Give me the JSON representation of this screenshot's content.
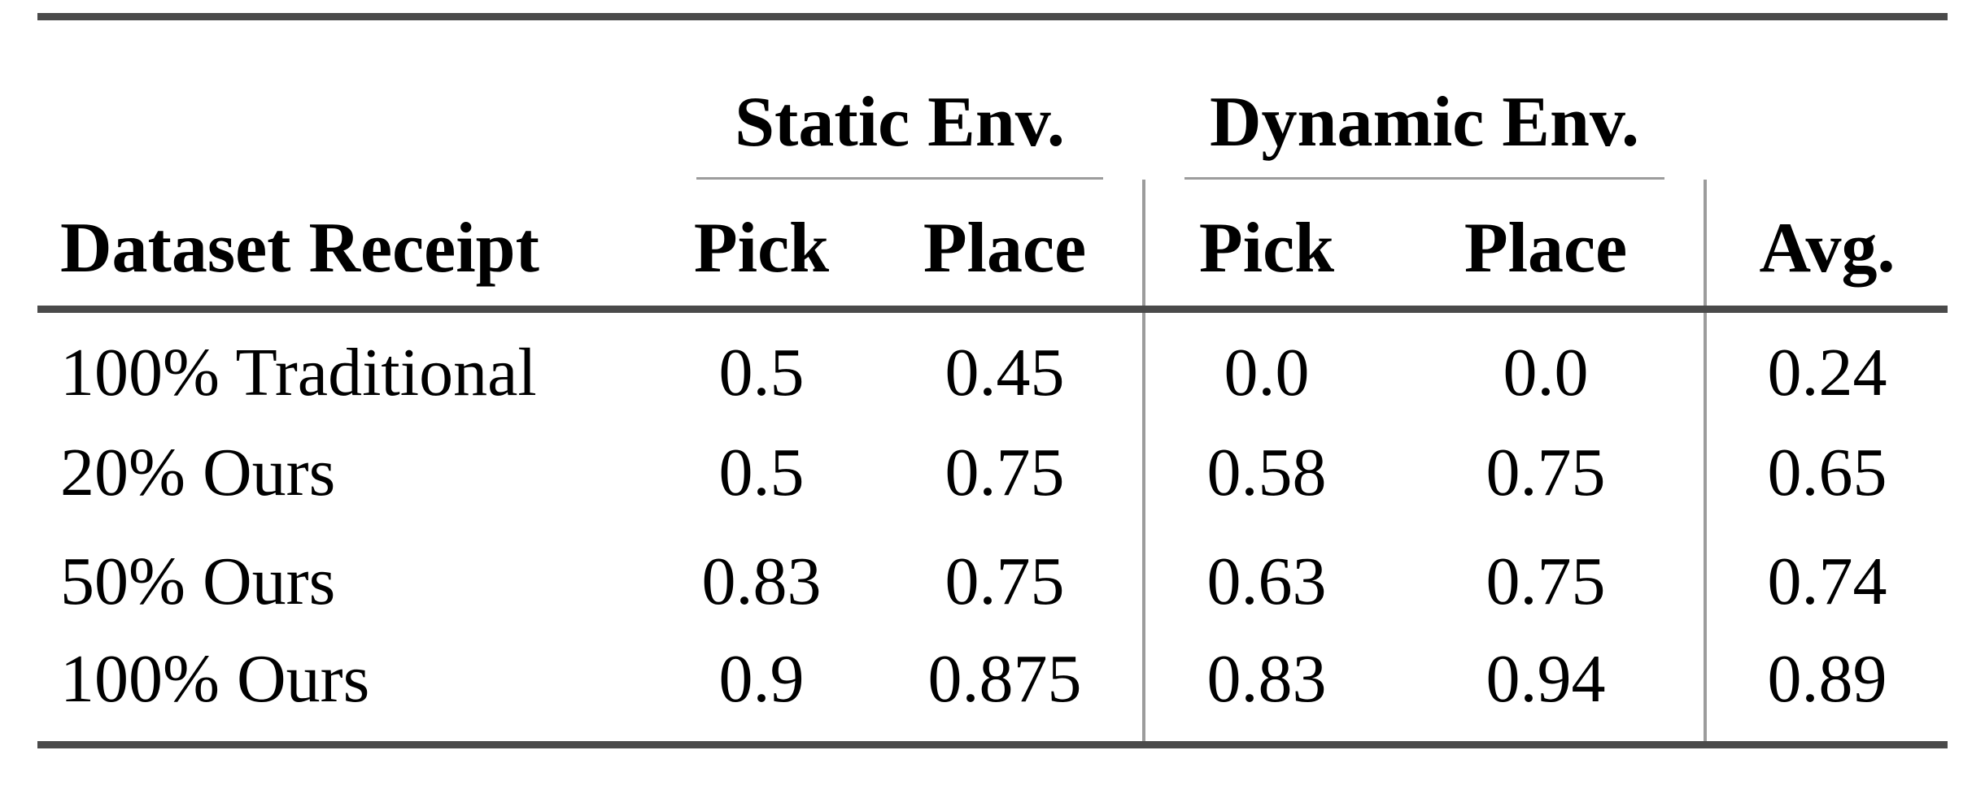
{
  "table": {
    "col_groups": [
      {
        "label": "Static Env."
      },
      {
        "label": "Dynamic Env."
      }
    ],
    "headers": {
      "row_label": "Dataset Receipt",
      "static_pick": "Pick",
      "static_place": "Place",
      "dynamic_pick": "Pick",
      "dynamic_place": "Place",
      "avg": "Avg."
    },
    "rows": [
      {
        "label": "100% Traditional",
        "static_pick": "0.5",
        "static_place": "0.45",
        "dynamic_pick": "0.0",
        "dynamic_place": "0.0",
        "avg": "0.24"
      },
      {
        "label": "20% Ours",
        "static_pick": "0.5",
        "static_place": "0.75",
        "dynamic_pick": "0.58",
        "dynamic_place": "0.75",
        "avg": "0.65"
      },
      {
        "label": "50% Ours",
        "static_pick": "0.83",
        "static_place": "0.75",
        "dynamic_pick": "0.63",
        "dynamic_place": "0.75",
        "avg": "0.74"
      },
      {
        "label": "100% Ours",
        "static_pick": "0.9",
        "static_place": "0.875",
        "dynamic_pick": "0.83",
        "dynamic_place": "0.94",
        "avg": "0.89"
      }
    ],
    "style": {
      "rule_color": "#4a4a4a",
      "separator_color": "#9c9c9c",
      "text_color": "#000000",
      "background": "#ffffff"
    }
  }
}
